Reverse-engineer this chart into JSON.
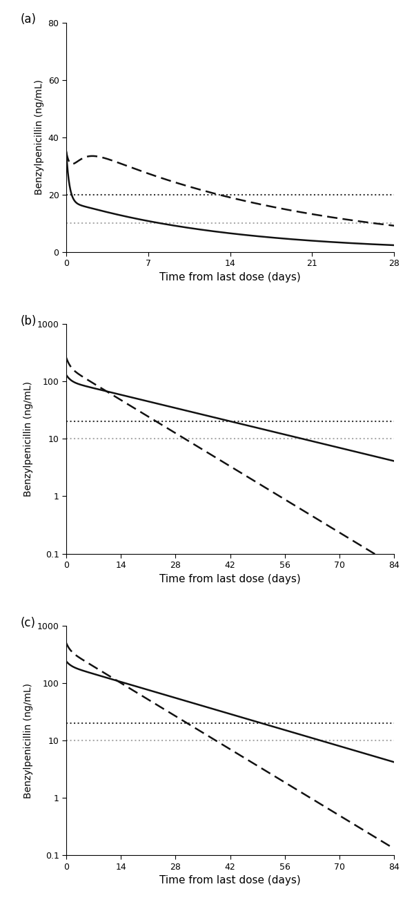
{
  "panel_a": {
    "label": "(a)",
    "xmax": 28,
    "xticks": [
      0,
      7,
      14,
      21,
      28
    ],
    "ylim": [
      0,
      80
    ],
    "yticks": [
      0,
      20,
      40,
      60,
      80
    ],
    "ylabel": "Benzylpenicillin (ng/mL)",
    "xlabel": "Time from last dose (days)",
    "hline1": 20,
    "hline1_color": "#333333",
    "hline2": 10,
    "hline2_color": "#aaaaaa",
    "solid_A": 20.0,
    "solid_alpha": 3.5,
    "solid_B": 15.0,
    "solid_beta": 0.072,
    "solid_C": 5.0,
    "solid_ka": 1.8,
    "dashed_A": 20.0,
    "dashed_alpha": 2.5,
    "dashed_B": 15.0,
    "dashed_beta": 0.052,
    "dashed_C": 28.0,
    "dashed_ka": 1.2
  },
  "panel_b": {
    "label": "(b)",
    "xmax": 84,
    "xticks": [
      0,
      14,
      28,
      42,
      56,
      70,
      84
    ],
    "ylim_log": [
      0.1,
      1000
    ],
    "yticks_log": [
      0.1,
      1,
      10,
      100,
      1000
    ],
    "ylabel": "Benzylpenicillin (ng/mL)",
    "xlabel": "Time from last dose (days)",
    "hline1": 20,
    "hline1_color": "#333333",
    "hline2": 10,
    "hline2_color": "#aaaaaa",
    "solid_A": 30.0,
    "solid_alpha": 0.9,
    "solid_B": 100.0,
    "solid_beta": 0.038,
    "dashed_A": 80.0,
    "dashed_alpha": 1.2,
    "dashed_B": 180.0,
    "dashed_beta": 0.095
  },
  "panel_c": {
    "label": "(c)",
    "xmax": 84,
    "xticks": [
      0,
      14,
      28,
      42,
      56,
      70,
      84
    ],
    "ylim_log": [
      0.1,
      1000
    ],
    "yticks_log": [
      0.1,
      1,
      10,
      100,
      1000
    ],
    "ylabel": "Benzylpenicillin (ng/mL)",
    "xlabel": "Time from last dose (days)",
    "hline1": 20,
    "hline1_color": "#333333",
    "hline2": 10,
    "hline2_color": "#aaaaaa",
    "solid_A": 40.0,
    "solid_alpha": 0.9,
    "solid_B": 200.0,
    "solid_beta": 0.046,
    "dashed_A": 120.0,
    "dashed_alpha": 1.2,
    "dashed_B": 380.0,
    "dashed_beta": 0.095
  },
  "line_color": "#111111",
  "line_width": 1.8,
  "dotted_lw": 1.5
}
